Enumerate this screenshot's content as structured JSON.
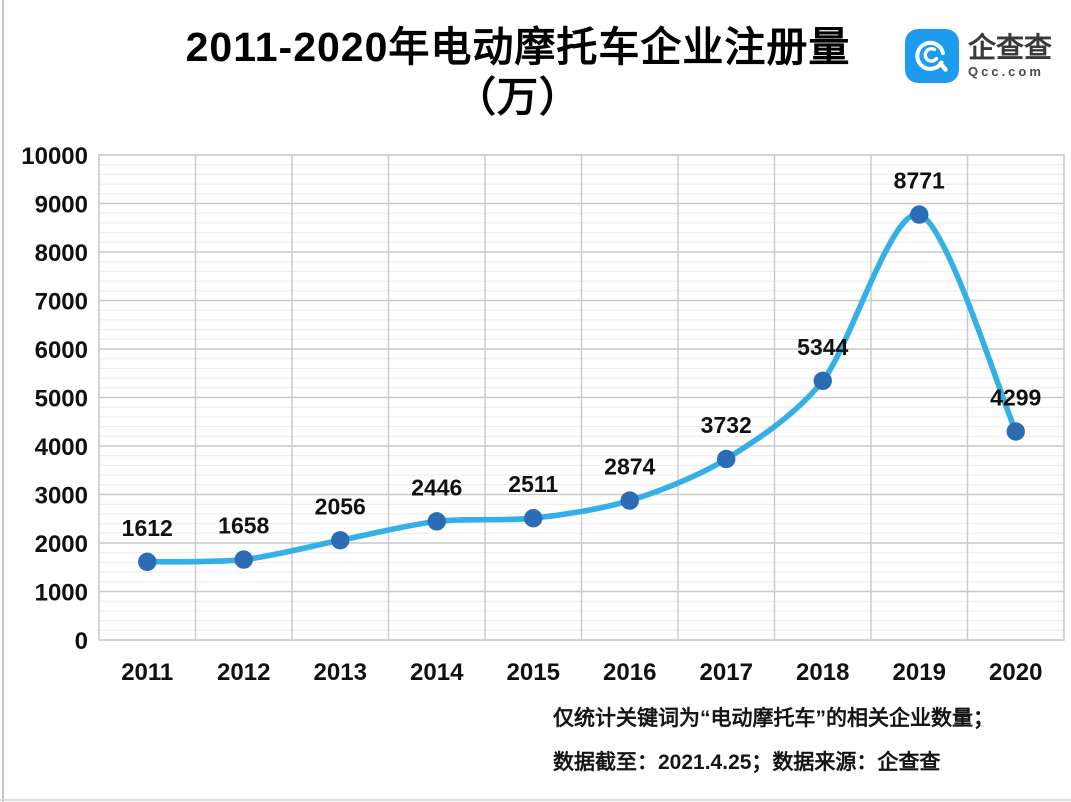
{
  "title": {
    "line1": "2011-2020年电动摩托车企业注册量",
    "line2": "（万）"
  },
  "logo": {
    "name": "企查查",
    "domain": "Qcc.com",
    "brand_color": "#1E9AEF"
  },
  "chart_data": {
    "type": "line",
    "title": "2011-2020年电动摩托车企业注册量（万）",
    "categories": [
      "2011",
      "2012",
      "2013",
      "2014",
      "2015",
      "2016",
      "2017",
      "2018",
      "2019",
      "2020"
    ],
    "series": [
      {
        "name": "电动摩托车企业注册量",
        "values": [
          1612,
          1658,
          2056,
          2446,
          2511,
          2874,
          3732,
          5344,
          8771,
          4299
        ]
      }
    ],
    "xlabel": "",
    "ylabel": "",
    "ylim": [
      0,
      10000
    ],
    "ytick_step": 1000,
    "yminor_step": 200,
    "grid": "on",
    "legend": "none",
    "data_labels": "above-points",
    "smooth_line": true,
    "colors": {
      "line": "#34B0E6",
      "marker": "#2B6CB5",
      "grid_major": "#C9C9C9",
      "grid_minor": "#EBEBEB",
      "text": "#111111"
    }
  },
  "footer": {
    "line1": "仅统计关键词为“电动摩托车”的相关企业数量；",
    "line2": "数据截至：2021.4.25；数据来源：企查查"
  }
}
